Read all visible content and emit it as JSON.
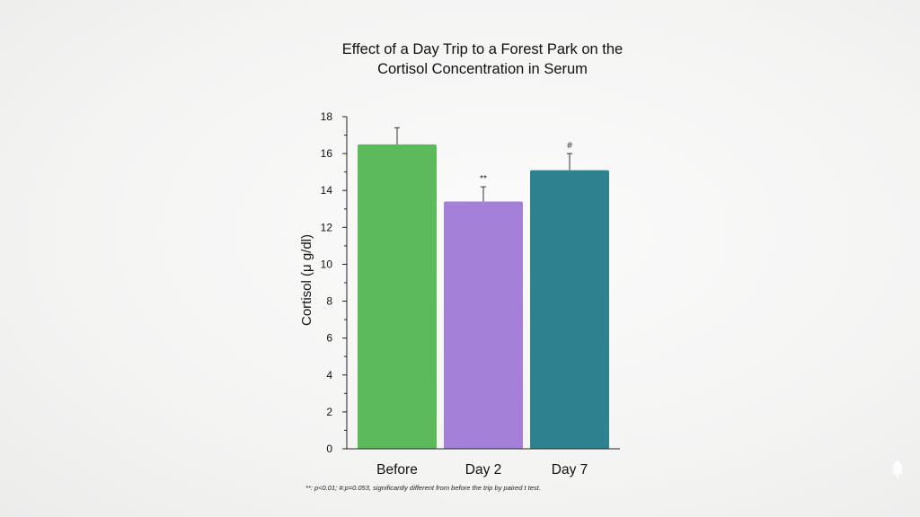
{
  "chart_data": {
    "type": "bar",
    "title": "Effect of a Day Trip to a Forest Park on the Cortisol Concentration in Serum",
    "categories": [
      "Before",
      "Day 2",
      "Day 7"
    ],
    "values": [
      16.5,
      13.4,
      15.1
    ],
    "errors": [
      0.9,
      0.8,
      0.9
    ],
    "annotations": [
      "",
      "**",
      "#"
    ],
    "colors": [
      "#5cba5a",
      "#a580d8",
      "#2e828f"
    ],
    "xlabel": "",
    "ylabel": "Cortisol (μ g/dl)",
    "ylim": [
      0,
      18
    ],
    "yticks": [
      0,
      2,
      4,
      6,
      8,
      10,
      12,
      14,
      16,
      18
    ],
    "grid": false,
    "footnote": "**: p<0.01; #:p=0.053, significantly different from before the trip by paired t test."
  }
}
